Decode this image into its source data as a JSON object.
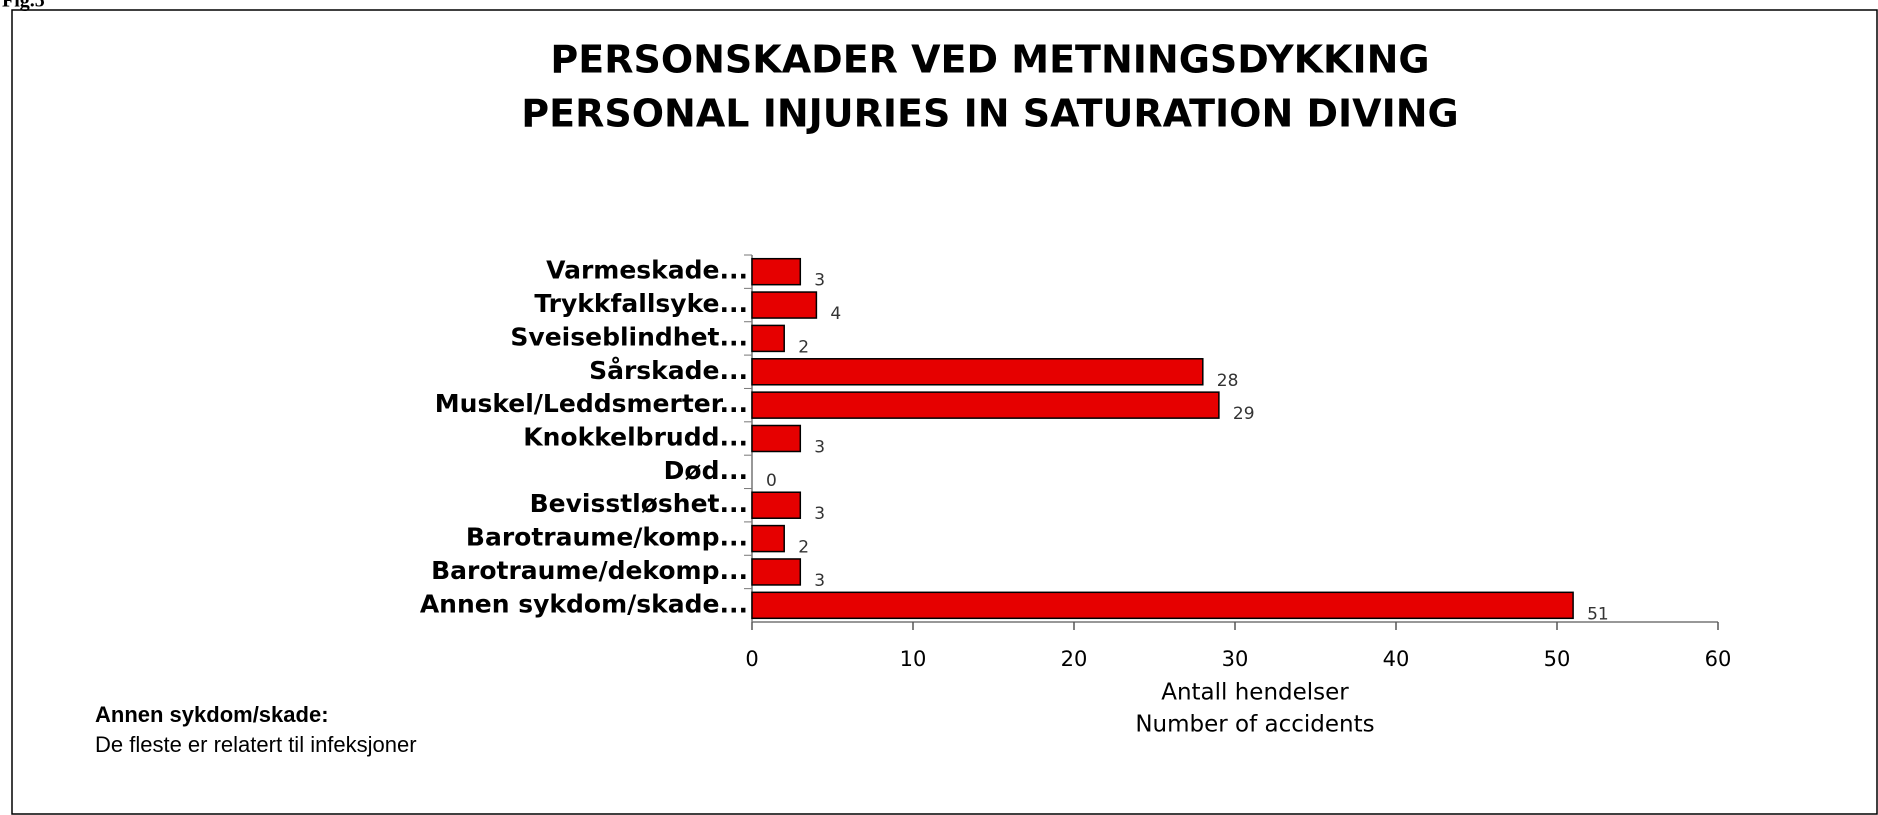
{
  "figure_label": "Fig.5",
  "chart_data": {
    "type": "barh",
    "title": [
      "PERSONSKADER VED METNINGSDYKKING",
      "PERSONAL INJURIES IN SATURATION DIVING"
    ],
    "x_label": [
      "Antall hendelser",
      "Number of accidents"
    ],
    "categories": [
      "Varmeskade...",
      "Trykkfallsyke...",
      "Sveiseblindhet...",
      "Sårskade...",
      "Muskel/Leddsmerter...",
      "Knokkelbrudd...",
      "Død...",
      "Bevisstløshet...",
      "Barotraume/komp...",
      "Barotraume/dekomp...",
      "Annen sykdom/skade..."
    ],
    "values": [
      3,
      4,
      2,
      28,
      29,
      3,
      0,
      3,
      2,
      3,
      51
    ],
    "color": "#e60000",
    "xlim": [
      0,
      60
    ],
    "xticks": [
      0,
      10,
      20,
      30,
      40,
      50,
      60
    ]
  },
  "note": {
    "heading": "Annen sykdom/skade:",
    "text": "De fleste er relatert til infeksjoner"
  }
}
